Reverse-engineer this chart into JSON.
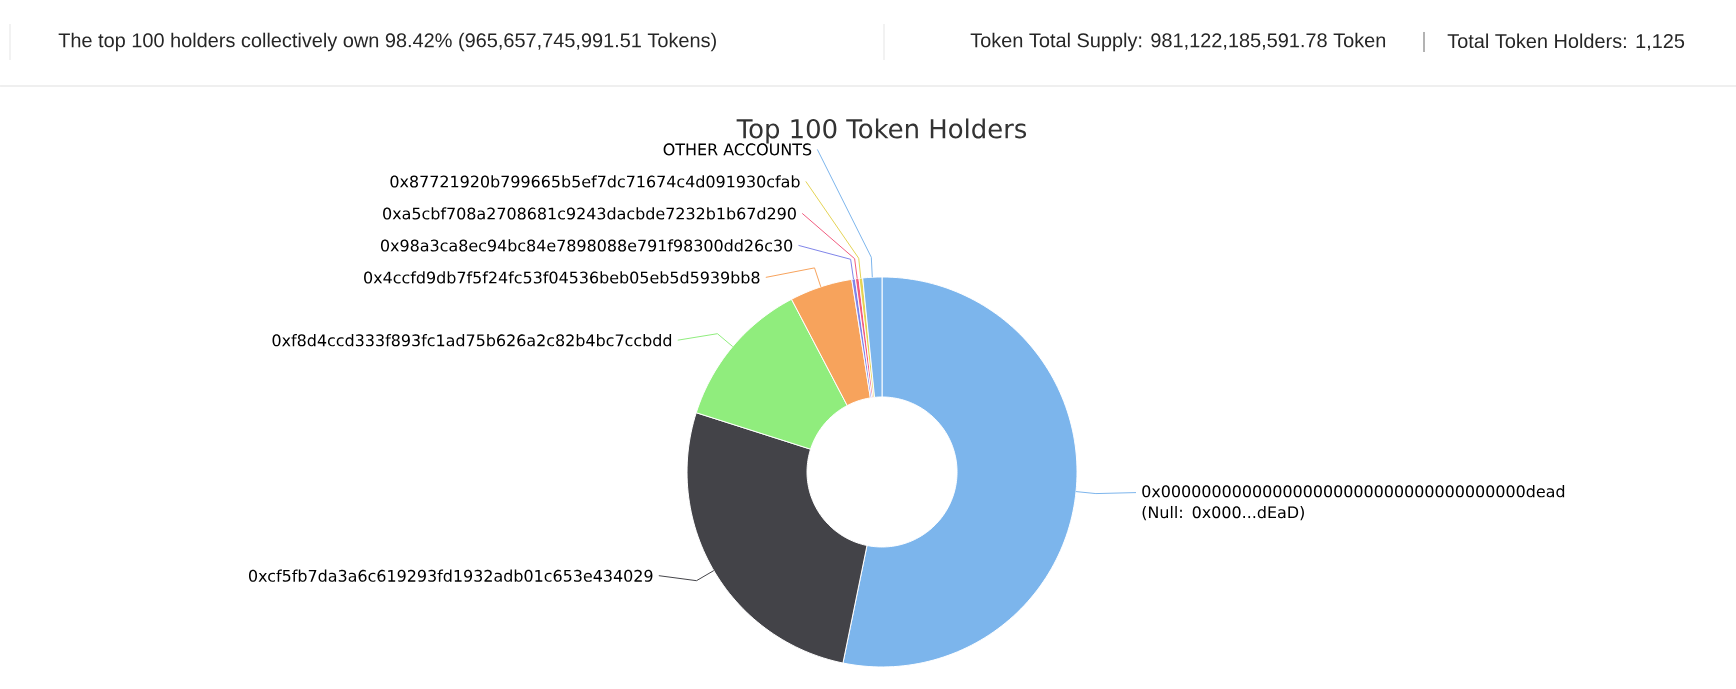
{
  "chart_data": {
    "type": "donut",
    "title": "Top 100 Token Holders",
    "annotations": [
      "The top 100 holders collectively own 98.42% (965,657,745,991.51 Tokens)",
      "Token Total Supply: 981,122,185,591.78 Token",
      "Total Token Holders: 1,125"
    ],
    "categories": [
      "0x000000000000000000000000000000000000dead (Null: 0x000...dEaD)",
      "0xcf5fb7da3a6c619293fd1932adb01c653e434029",
      "0xf8d4ccd333f893fc1ad75b626a2c82b4bc7ccbdd",
      "0x4ccfd9db7f5f24fc53f04536beb05eb5d5939bb8",
      "0x98a3ca8ec94bc84e7898088e791f98300dd26c30",
      "0xa5cbf708a2708681c9243dacbde7232b1b67d290",
      "0x87721920b799665b5ef7dc71674c4d091930cfab",
      "OTHER ACCOUNTS"
    ],
    "values": [
      53.2,
      26.7,
      12.4,
      5.2,
      0.3,
      0.3,
      0.3,
      1.58
    ],
    "colors": [
      "#7cb5ec",
      "#434348",
      "#90ed7d",
      "#f7a35c",
      "#8085e9",
      "#f15c80",
      "#e4d354",
      "#7cb5ec"
    ]
  }
}
